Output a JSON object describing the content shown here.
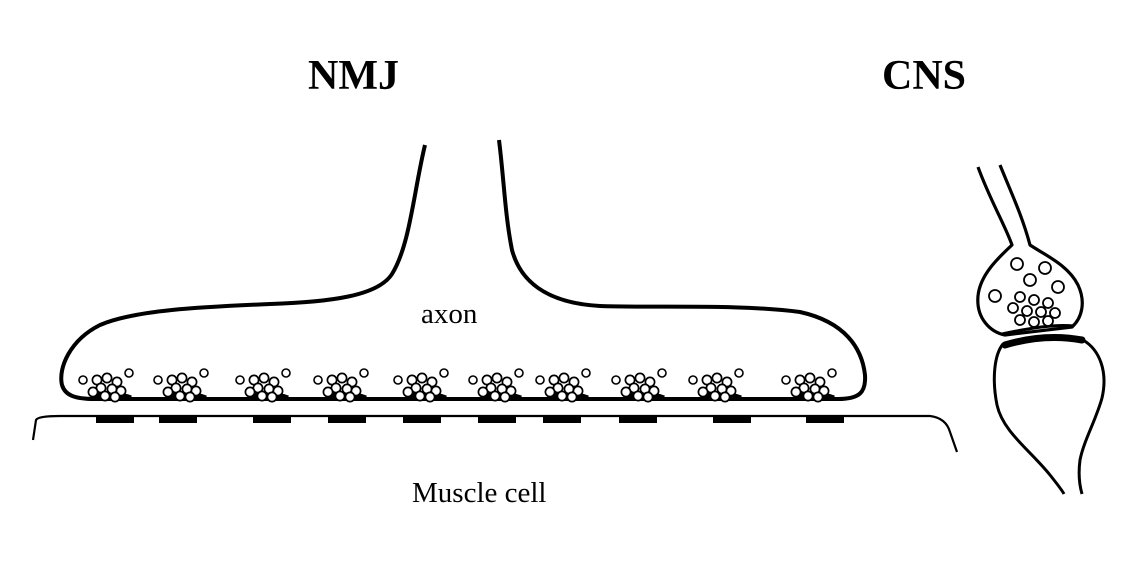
{
  "nmj": {
    "title": "NMJ",
    "axon_label": "axon",
    "muscle_label": "Muscle cell",
    "active_zone_count": 10
  },
  "cns": {
    "title": "CNS"
  },
  "colors": {
    "ink": "#000000",
    "background": "#ffffff",
    "vesicle_fill": "#ffffff"
  }
}
